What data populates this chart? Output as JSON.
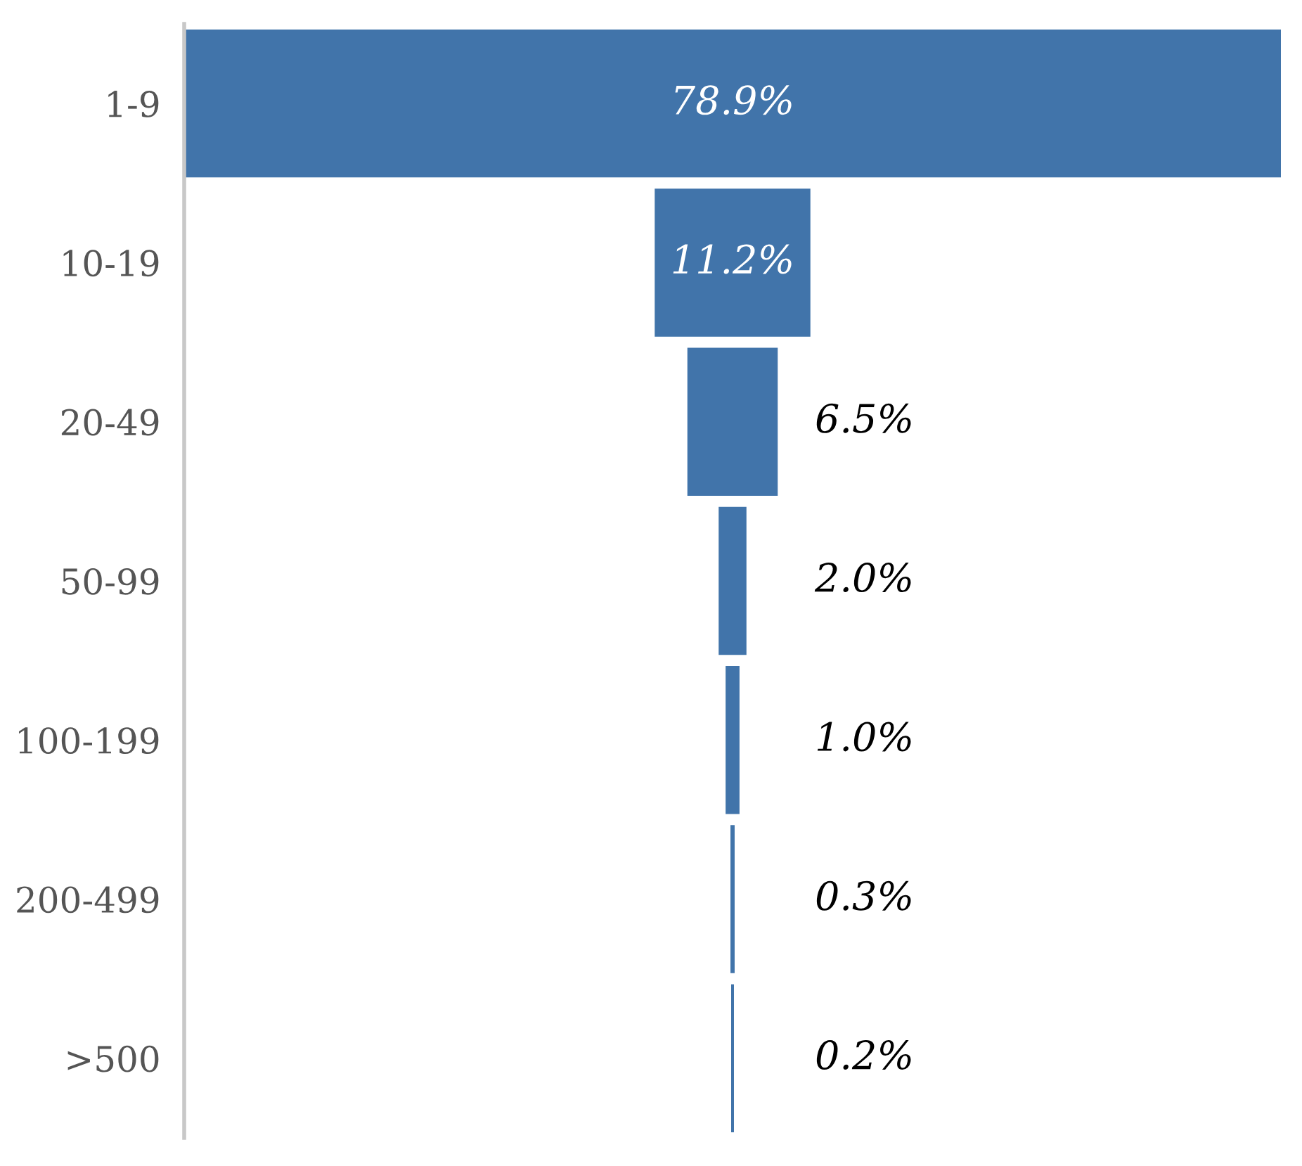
{
  "chart_data": {
    "type": "other",
    "categories": [
      "1-9",
      "10-19",
      "20-49",
      "50-99",
      "100-199",
      "200-499",
      ">500"
    ],
    "values": [
      78.9,
      11.2,
      6.5,
      2.0,
      1.0,
      0.3,
      0.2
    ],
    "value_labels": [
      "78.9%",
      "11.2%",
      "6.5%",
      "2.0%",
      "1.0%",
      "0.3%",
      "0.2%"
    ],
    "color": "#4174aa"
  }
}
